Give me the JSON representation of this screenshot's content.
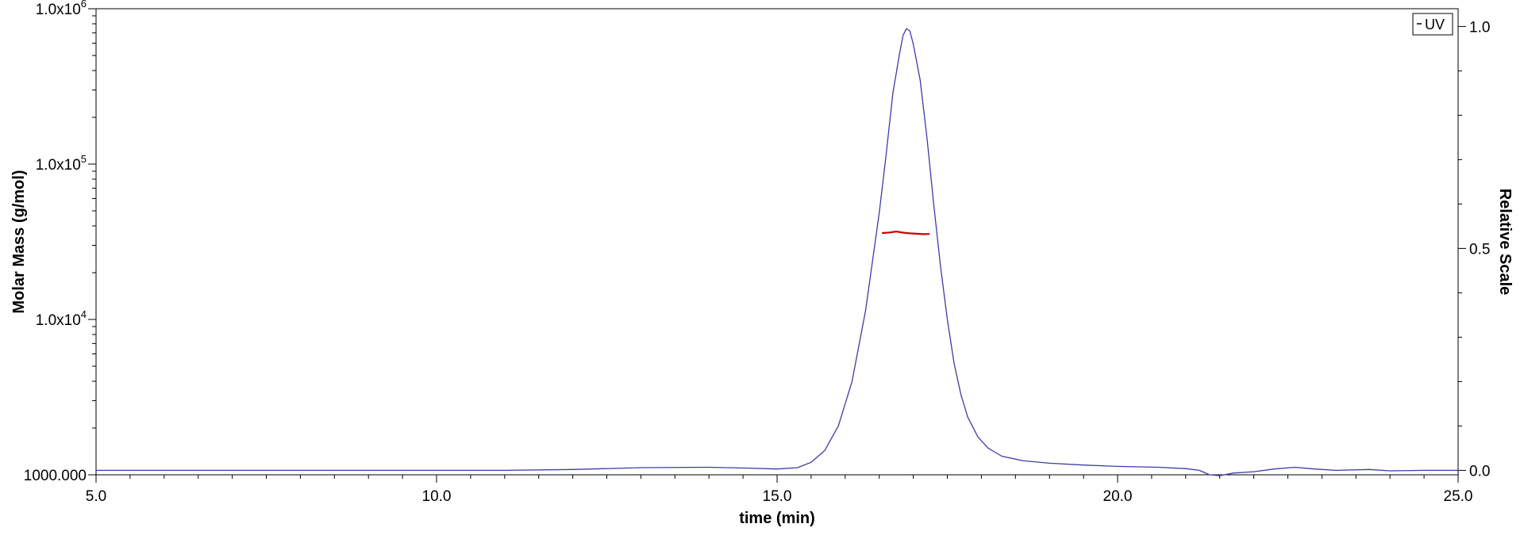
{
  "chart_data": {
    "type": "line",
    "title": "",
    "xlabel": "time (min)",
    "ylabel_left": "Molar Mass (g/mol)",
    "ylabel_right": "Relative Scale",
    "xlim": [
      5.0,
      25.0
    ],
    "ylim_left": [
      1000,
      1000000
    ],
    "ylim_right": [
      -0.01,
      1.04
    ],
    "y_left_scale": "log",
    "x_ticks": [
      {
        "value": 5,
        "label": "5.0"
      },
      {
        "value": 10,
        "label": "10.0"
      },
      {
        "value": 15,
        "label": "15.0"
      },
      {
        "value": 20,
        "label": "20.0"
      },
      {
        "value": 25,
        "label": "25.0"
      }
    ],
    "y_left_ticks": [
      {
        "value": 1000,
        "base": "1000.000",
        "exp": ""
      },
      {
        "value": 10000,
        "base": "1.0x10",
        "exp": "4"
      },
      {
        "value": 100000,
        "base": "1.0x10",
        "exp": "5"
      },
      {
        "value": 1000000,
        "base": "1.0x10",
        "exp": "6"
      }
    ],
    "y_right_ticks": [
      {
        "value": 0.0,
        "label": "0.0"
      },
      {
        "value": 0.5,
        "label": "0.5"
      },
      {
        "value": 1.0,
        "label": "1.0"
      }
    ],
    "grid": false,
    "legend": {
      "placement": "top-right",
      "entries": [
        "UV"
      ]
    },
    "series": [
      {
        "name": "UV",
        "axis": "right",
        "color": "#3c3ca8",
        "points": [
          [
            5.0,
            0.0
          ],
          [
            6.0,
            0.0
          ],
          [
            8.0,
            0.0
          ],
          [
            10.0,
            0.0
          ],
          [
            11.0,
            0.0
          ],
          [
            12.0,
            0.002
          ],
          [
            13.0,
            0.006
          ],
          [
            14.0,
            0.007
          ],
          [
            14.6,
            0.005
          ],
          [
            15.0,
            0.003
          ],
          [
            15.3,
            0.006
          ],
          [
            15.5,
            0.018
          ],
          [
            15.7,
            0.045
          ],
          [
            15.9,
            0.1
          ],
          [
            16.1,
            0.2
          ],
          [
            16.3,
            0.36
          ],
          [
            16.5,
            0.58
          ],
          [
            16.6,
            0.71
          ],
          [
            16.7,
            0.85
          ],
          [
            16.8,
            0.94
          ],
          [
            16.85,
            0.98
          ],
          [
            16.9,
            0.995
          ],
          [
            16.95,
            0.99
          ],
          [
            17.0,
            0.96
          ],
          [
            17.1,
            0.88
          ],
          [
            17.2,
            0.75
          ],
          [
            17.3,
            0.6
          ],
          [
            17.4,
            0.46
          ],
          [
            17.5,
            0.34
          ],
          [
            17.6,
            0.24
          ],
          [
            17.7,
            0.17
          ],
          [
            17.8,
            0.12
          ],
          [
            17.95,
            0.075
          ],
          [
            18.1,
            0.05
          ],
          [
            18.3,
            0.032
          ],
          [
            18.6,
            0.022
          ],
          [
            19.0,
            0.016
          ],
          [
            19.5,
            0.012
          ],
          [
            20.0,
            0.009
          ],
          [
            20.6,
            0.007
          ],
          [
            21.0,
            0.004
          ],
          [
            21.2,
            0.0
          ],
          [
            21.35,
            -0.01
          ],
          [
            21.5,
            -0.012
          ],
          [
            21.7,
            -0.006
          ],
          [
            22.0,
            -0.003
          ],
          [
            22.3,
            0.003
          ],
          [
            22.6,
            0.007
          ],
          [
            22.9,
            0.003
          ],
          [
            23.2,
            0.0
          ],
          [
            23.7,
            0.002
          ],
          [
            24.0,
            -0.001
          ],
          [
            24.5,
            0.0
          ],
          [
            25.0,
            0.0
          ]
        ]
      },
      {
        "name": "Molar Mass",
        "axis": "left",
        "color": "#cc0000",
        "points": [
          [
            16.55,
            36000
          ],
          [
            16.65,
            36300
          ],
          [
            16.75,
            36800
          ],
          [
            16.85,
            36200
          ],
          [
            16.95,
            35800
          ],
          [
            17.05,
            35600
          ],
          [
            17.15,
            35400
          ],
          [
            17.23,
            35500
          ]
        ]
      }
    ]
  }
}
